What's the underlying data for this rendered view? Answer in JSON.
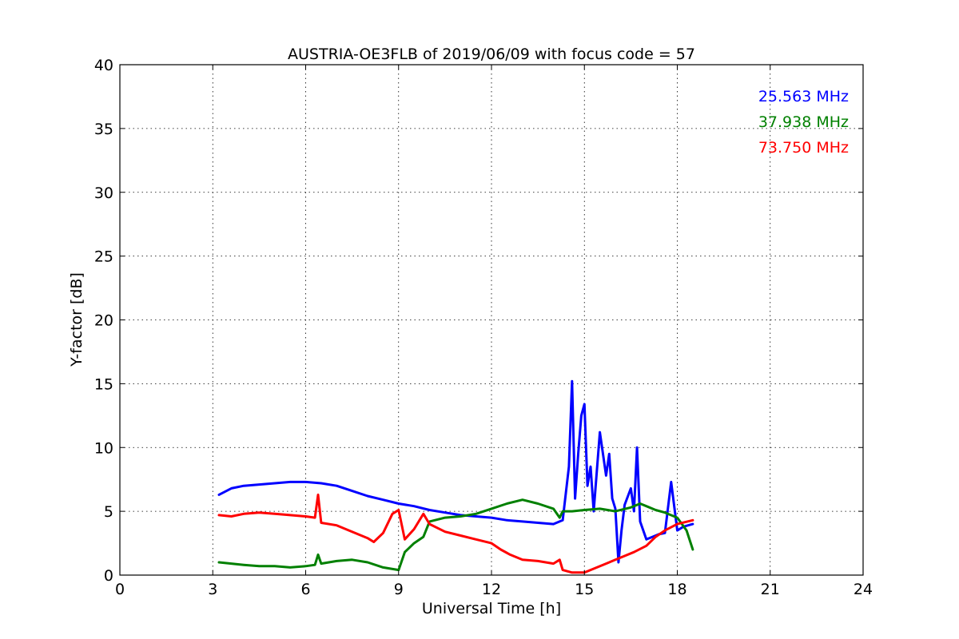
{
  "chart_data": {
    "type": "line",
    "title": "AUSTRIA-OE3FLB of 2019/06/09 with focus code = 57",
    "xlabel": "Universal Time [h]",
    "ylabel": "Y-factor [dB]",
    "xlim": [
      0,
      24
    ],
    "ylim": [
      0,
      40
    ],
    "xticks": [
      0,
      3,
      6,
      9,
      12,
      15,
      18,
      21,
      24
    ],
    "yticks": [
      0,
      5,
      10,
      15,
      20,
      25,
      30,
      35,
      40
    ],
    "grid": true,
    "legend_position": "top-right",
    "series": [
      {
        "name": "25.563 MHz",
        "color": "#0000ff",
        "x": [
          3.2,
          3.6,
          4.0,
          4.5,
          5.0,
          5.5,
          6.0,
          6.5,
          7.0,
          7.5,
          8.0,
          8.5,
          9.0,
          9.5,
          10.0,
          10.5,
          11.0,
          11.5,
          12.0,
          12.5,
          13.0,
          13.5,
          14.0,
          14.3,
          14.5,
          14.6,
          14.7,
          14.8,
          14.9,
          15.0,
          15.1,
          15.2,
          15.3,
          15.5,
          15.7,
          15.8,
          15.9,
          16.0,
          16.1,
          16.2,
          16.3,
          16.5,
          16.6,
          16.7,
          16.8,
          17.0,
          17.2,
          17.4,
          17.6,
          17.8,
          18.0,
          18.2,
          18.5
        ],
        "y": [
          6.3,
          6.8,
          7.0,
          7.1,
          7.2,
          7.3,
          7.3,
          7.2,
          7.0,
          6.6,
          6.2,
          5.9,
          5.6,
          5.4,
          5.1,
          4.9,
          4.7,
          4.6,
          4.5,
          4.3,
          4.2,
          4.1,
          4.0,
          4.3,
          8.5,
          15.2,
          6.0,
          9.5,
          12.5,
          13.4,
          7.0,
          8.5,
          5.0,
          11.2,
          7.8,
          9.5,
          6.0,
          5.2,
          1.0,
          3.5,
          5.5,
          6.8,
          5.0,
          10.0,
          4.2,
          2.8,
          3.0,
          3.2,
          3.3,
          7.3,
          3.5,
          3.8,
          4.0
        ]
      },
      {
        "name": "37.938 MHz",
        "color": "#008000",
        "x": [
          3.2,
          3.6,
          4.0,
          4.5,
          5.0,
          5.5,
          6.0,
          6.3,
          6.4,
          6.5,
          7.0,
          7.5,
          8.0,
          8.5,
          9.0,
          9.2,
          9.5,
          9.8,
          10.0,
          10.5,
          11.0,
          11.5,
          12.0,
          12.5,
          13.0,
          13.5,
          14.0,
          14.2,
          14.3,
          14.6,
          15.0,
          15.5,
          16.0,
          16.5,
          16.8,
          17.0,
          17.3,
          17.6,
          18.0,
          18.3,
          18.5
        ],
        "y": [
          1.0,
          0.9,
          0.8,
          0.7,
          0.7,
          0.6,
          0.7,
          0.8,
          1.6,
          0.9,
          1.1,
          1.2,
          1.0,
          0.6,
          0.4,
          1.8,
          2.5,
          3.0,
          4.2,
          4.5,
          4.6,
          4.8,
          5.2,
          5.6,
          5.9,
          5.6,
          5.2,
          4.5,
          5.0,
          5.0,
          5.1,
          5.2,
          5.0,
          5.3,
          5.6,
          5.4,
          5.1,
          4.9,
          4.5,
          3.5,
          2.0
        ]
      },
      {
        "name": "73.750 MHz",
        "color": "#ff0000",
        "x": [
          3.2,
          3.6,
          4.0,
          4.5,
          5.0,
          5.5,
          6.0,
          6.3,
          6.4,
          6.5,
          7.0,
          7.5,
          8.0,
          8.2,
          8.5,
          8.8,
          9.0,
          9.2,
          9.5,
          9.8,
          10.0,
          10.5,
          11.0,
          11.5,
          12.0,
          12.3,
          12.6,
          13.0,
          13.5,
          14.0,
          14.2,
          14.3,
          14.6,
          15.0,
          15.3,
          15.6,
          16.0,
          16.3,
          16.6,
          17.0,
          17.3,
          17.6,
          18.0,
          18.5
        ],
        "y": [
          4.7,
          4.6,
          4.8,
          4.9,
          4.8,
          4.7,
          4.6,
          4.5,
          6.3,
          4.1,
          3.9,
          3.4,
          2.9,
          2.6,
          3.3,
          4.8,
          5.1,
          2.8,
          3.6,
          4.8,
          4.0,
          3.4,
          3.1,
          2.8,
          2.5,
          2.0,
          1.6,
          1.2,
          1.1,
          0.9,
          1.2,
          0.4,
          0.2,
          0.2,
          0.5,
          0.8,
          1.2,
          1.5,
          1.8,
          2.3,
          3.0,
          3.5,
          4.0,
          4.3
        ]
      }
    ]
  }
}
